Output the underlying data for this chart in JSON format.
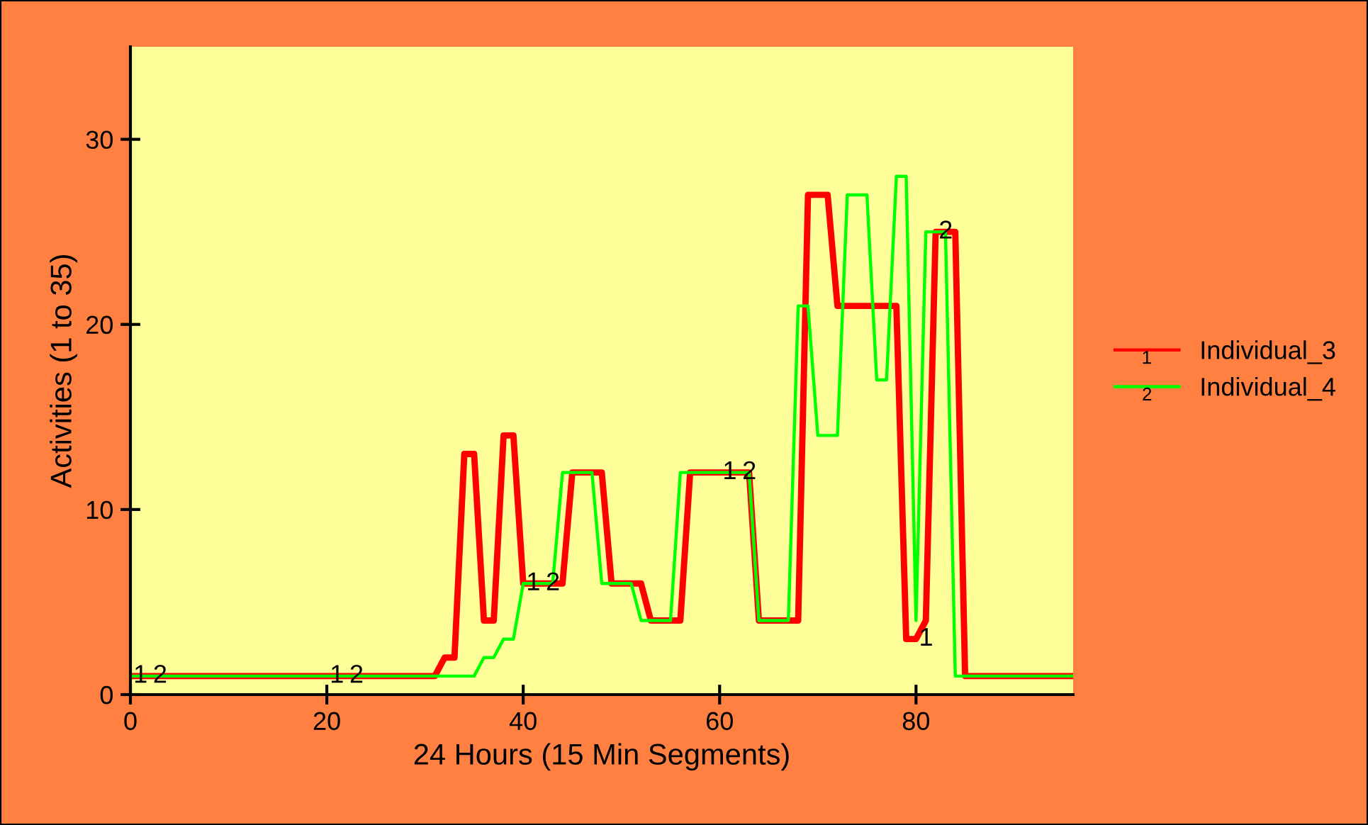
{
  "chart_data": {
    "type": "line",
    "xlabel": "24 Hours (15 Min Segments)",
    "ylabel": "Activities (1 to 35)",
    "x": [
      0,
      1,
      2,
      3,
      4,
      5,
      6,
      7,
      8,
      9,
      10,
      11,
      12,
      13,
      14,
      15,
      16,
      17,
      18,
      19,
      20,
      21,
      22,
      23,
      24,
      25,
      26,
      27,
      28,
      29,
      30,
      31,
      32,
      33,
      34,
      35,
      36,
      37,
      38,
      39,
      40,
      41,
      42,
      43,
      44,
      45,
      46,
      47,
      48,
      49,
      50,
      51,
      52,
      53,
      54,
      55,
      56,
      57,
      58,
      59,
      60,
      61,
      62,
      63,
      64,
      65,
      66,
      67,
      68,
      69,
      70,
      71,
      72,
      73,
      74,
      75,
      76,
      77,
      78,
      79,
      80,
      81,
      82,
      83,
      84,
      85,
      86,
      87,
      88,
      89,
      90,
      91,
      92,
      93,
      94,
      95,
      96
    ],
    "series": [
      {
        "name": "Individual_3",
        "color": "#ff0000",
        "values": [
          1,
          1,
          1,
          1,
          1,
          1,
          1,
          1,
          1,
          1,
          1,
          1,
          1,
          1,
          1,
          1,
          1,
          1,
          1,
          1,
          1,
          1,
          1,
          1,
          1,
          1,
          1,
          1,
          1,
          1,
          1,
          1,
          2,
          2,
          13,
          13,
          4,
          4,
          14,
          14,
          6,
          6,
          6,
          6,
          6,
          12,
          12,
          12,
          12,
          6,
          6,
          6,
          6,
          4,
          4,
          4,
          4,
          12,
          12,
          12,
          12,
          12,
          12,
          12,
          4,
          4,
          4,
          4,
          4,
          27,
          27,
          27,
          21,
          21,
          21,
          21,
          21,
          21,
          21,
          3,
          3,
          4,
          25,
          25,
          25,
          1,
          1,
          1,
          1,
          1,
          1,
          1,
          1,
          1,
          1,
          1,
          1
        ]
      },
      {
        "name": "Individual_4",
        "color": "#00ff00",
        "values": [
          1,
          1,
          1,
          1,
          1,
          1,
          1,
          1,
          1,
          1,
          1,
          1,
          1,
          1,
          1,
          1,
          1,
          1,
          1,
          1,
          1,
          1,
          1,
          1,
          1,
          1,
          1,
          1,
          1,
          1,
          1,
          1,
          1,
          1,
          1,
          1,
          2,
          2,
          3,
          3,
          6,
          6,
          6,
          6,
          12,
          12,
          12,
          12,
          6,
          6,
          6,
          6,
          4,
          4,
          4,
          4,
          12,
          12,
          12,
          12,
          12,
          12,
          12,
          12,
          4,
          4,
          4,
          4,
          21,
          21,
          14,
          14,
          14,
          27,
          27,
          27,
          17,
          17,
          28,
          28,
          4,
          25,
          25,
          25,
          1,
          1,
          1,
          1,
          1,
          1,
          1,
          1,
          1,
          1,
          1,
          1,
          1
        ]
      }
    ],
    "annotations": [
      {
        "text": "1",
        "x": 0,
        "y": 1
      },
      {
        "text": "1",
        "x": 20,
        "y": 1
      },
      {
        "text": "1",
        "x": 40,
        "y": 6
      },
      {
        "text": "1",
        "x": 60,
        "y": 12
      },
      {
        "text": "1",
        "x": 80,
        "y": 3
      },
      {
        "text": "2",
        "x": 2,
        "y": 1
      },
      {
        "text": "2",
        "x": 22,
        "y": 1
      },
      {
        "text": "2",
        "x": 42,
        "y": 6
      },
      {
        "text": "2",
        "x": 62,
        "y": 12
      },
      {
        "text": "2",
        "x": 82,
        "y": 25
      }
    ],
    "xlim": [
      0,
      96
    ],
    "ylim": [
      0,
      35
    ],
    "xticks": [
      0,
      20,
      40,
      60,
      80
    ],
    "yticks": [
      0,
      10,
      20,
      30
    ],
    "grid": false,
    "legend": "right",
    "marker": "none",
    "line_style": "solid"
  }
}
